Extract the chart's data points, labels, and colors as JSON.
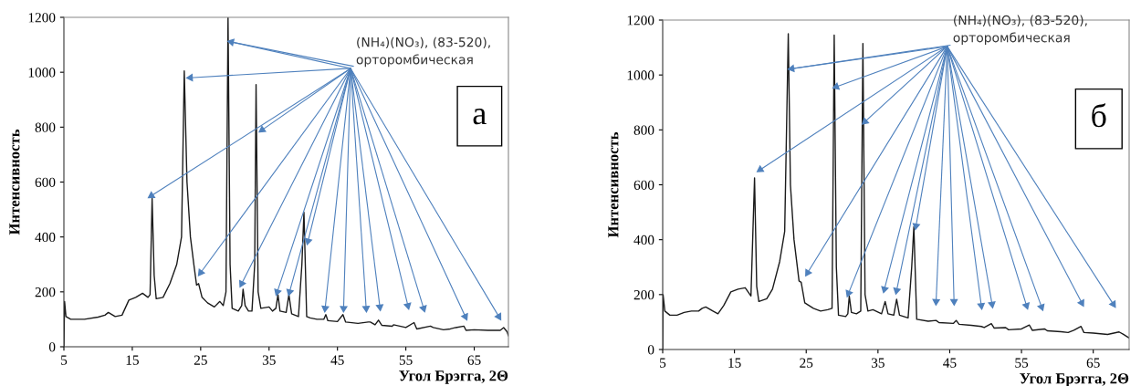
{
  "chart_data": [
    {
      "type": "line",
      "xlabel": "Угол Брэгга, 2Θ",
      "ylabel": "Интенсивность",
      "xlim": [
        5,
        70
      ],
      "ylim": [
        0,
        1200
      ],
      "xticks": [
        5,
        15,
        25,
        35,
        45,
        55,
        65
      ],
      "yticks": [
        0,
        200,
        400,
        600,
        800,
        1000,
        1200
      ],
      "grid": false,
      "legend": false,
      "series": [
        {
          "color": "#1a1a1a",
          "x": [
            5.0,
            5.1,
            5.3,
            6,
            8,
            10,
            11,
            11.5,
            12.5,
            13.5,
            14.5,
            15.5,
            16.5,
            17.3,
            17.6,
            17.9,
            18.2,
            18.5,
            19.5,
            20.5,
            21.5,
            22.2,
            22.6,
            23,
            23.5,
            24,
            24.4,
            24.7,
            25.2,
            26,
            27,
            27.8,
            28.3,
            28.7,
            29.0,
            29.3,
            29.6,
            30.5,
            31.0,
            31.2,
            31.5,
            32,
            32.5,
            32.9,
            33.1,
            33.4,
            33.8,
            35,
            35.5,
            36.0,
            36.3,
            36.6,
            37.5,
            37.9,
            38.3,
            39.3,
            39.8,
            40.1,
            40.5,
            41,
            42,
            43,
            43.3,
            43.6,
            45,
            45.8,
            46.2,
            48,
            49.5,
            49.8,
            50.5,
            51,
            51.5,
            53,
            53.2,
            55,
            56.2,
            56.6,
            58.6,
            59,
            60.5,
            61.5,
            62.3,
            63.5,
            63.8,
            65,
            67,
            68.8,
            69.3,
            69.8,
            70
          ],
          "values": [
            0,
            165,
            110,
            100,
            100,
            108,
            115,
            125,
            110,
            115,
            170,
            180,
            195,
            180,
            190,
            540,
            260,
            175,
            180,
            230,
            300,
            400,
            1005,
            600,
            400,
            300,
            225,
            230,
            180,
            160,
            145,
            165,
            150,
            200,
            1200,
            300,
            140,
            130,
            150,
            210,
            150,
            130,
            130,
            300,
            955,
            200,
            140,
            145,
            130,
            140,
            190,
            130,
            125,
            190,
            120,
            110,
            300,
            490,
            110,
            105,
            100,
            100,
            117,
            95,
            92,
            117,
            90,
            85,
            90,
            90,
            80,
            97,
            78,
            75,
            80,
            70,
            88,
            65,
            75,
            70,
            62,
            65,
            70,
            75,
            60,
            62,
            60,
            60,
            70,
            55,
            40
          ]
        },
        {
          "type": "scatter",
          "marker": "triangle",
          "color": "#4f81bd",
          "x": [
            29.5,
            23.5,
            17.8,
            34,
            25,
            31,
            36.2,
            38,
            40.7,
            43.2,
            45.9,
            49.2,
            51.2,
            55.3,
            57.6,
            63.7,
            68.6
          ],
          "values": [
            1110,
            980,
            550,
            790,
            270,
            230,
            200,
            200,
            385,
            140,
            140,
            140,
            145,
            150,
            140,
            110,
            110
          ]
        }
      ],
      "annotations": [
        {
          "text": "(NH₄)(NO₃), (83-520),\nорторомбическая",
          "x": 29.5,
          "y": 1110
        },
        "а"
      ]
    },
    {
      "type": "line",
      "xlabel": "Угол Брэгга, 2Θ",
      "ylabel": "Интенсивность",
      "xlim": [
        5,
        70
      ],
      "ylim": [
        0,
        1200
      ],
      "xticks": [
        5,
        15,
        25,
        35,
        45,
        55,
        65
      ],
      "yticks": [
        0,
        200,
        400,
        600,
        800,
        1000,
        1200
      ],
      "grid": false,
      "legend": false,
      "series": [
        {
          "color": "#1a1a1a",
          "x": [
            5.0,
            5.05,
            5.3,
            6,
            7,
            8,
            9,
            10,
            10.5,
            11,
            12,
            12.7,
            13.5,
            14.5,
            15.5,
            16.5,
            17.3,
            17.8,
            18.1,
            18.4,
            19.5,
            20.3,
            21.3,
            22,
            22.5,
            22.8,
            23.3,
            24,
            24.3,
            24.8,
            26,
            27,
            28,
            28.6,
            28.9,
            29.2,
            29.5,
            30.5,
            30.8,
            31.0,
            31.3,
            32,
            32.6,
            32.9,
            33.2,
            33.6,
            34.3,
            35.5,
            36.0,
            36.4,
            37.2,
            37.6,
            38.0,
            39.2,
            39.7,
            40.0,
            40.4,
            42,
            43.1,
            43.5,
            45.5,
            45.9,
            46.3,
            48,
            49.4,
            49.8,
            50.8,
            51.2,
            52.8,
            53.2,
            55,
            56.1,
            56.5,
            58.2,
            58.6,
            60.5,
            61.5,
            62.3,
            63.3,
            63.7,
            65,
            67,
            68.6,
            69.2,
            70
          ],
          "values": [
            0,
            200,
            140,
            125,
            125,
            135,
            140,
            140,
            150,
            155,
            140,
            130,
            160,
            210,
            220,
            225,
            195,
            625,
            230,
            175,
            185,
            220,
            320,
            430,
            1150,
            600,
            400,
            250,
            245,
            170,
            150,
            140,
            145,
            150,
            1145,
            300,
            125,
            120,
            130,
            195,
            135,
            130,
            140,
            1115,
            200,
            140,
            145,
            130,
            175,
            130,
            125,
            183,
            125,
            115,
            300,
            447,
            110,
            103,
            106,
            98,
            95,
            106,
            92,
            88,
            84,
            80,
            94,
            78,
            80,
            72,
            75,
            89,
            70,
            75,
            68,
            65,
            62,
            70,
            84,
            62,
            60,
            55,
            64,
            55,
            42
          ]
        },
        {
          "type": "scatter",
          "marker": "triangle",
          "color": "#4f81bd",
          "x": [
            23,
            29.2,
            18.6,
            33.2,
            25.2,
            30.9,
            35.9,
            37.6,
            40.3,
            43.1,
            45.6,
            49.4,
            50.9,
            55.7,
            57.8,
            63.4,
            67.8
          ],
          "values": [
            1023,
            957,
            655,
            830,
            280,
            205,
            220,
            215,
            450,
            175,
            175,
            160,
            165,
            160,
            155,
            170,
            165
          ]
        }
      ],
      "annotations": [
        {
          "text": "(NH₄)(NO₃), (83-520),\nорторомбическая",
          "x": 23,
          "y": 1023
        },
        "б"
      ]
    }
  ]
}
